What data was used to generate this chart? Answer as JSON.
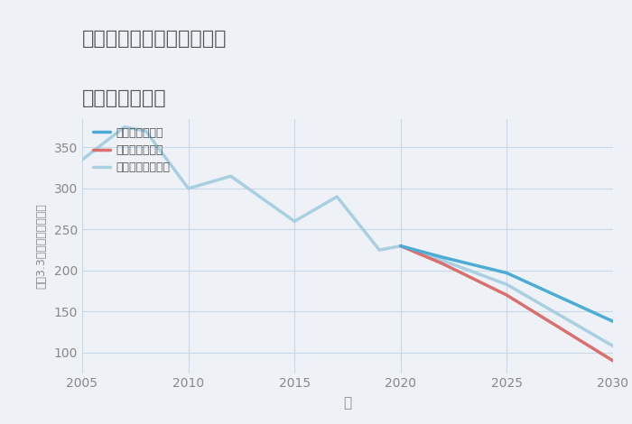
{
  "title_line1": "東京都東村山市多摩湖町の",
  "title_line2": "土地の価格推移",
  "xlabel": "年",
  "ylabel": "坪（3.3㎡）単価（万円）",
  "background_color": "#eef2f7",
  "plot_background_color": "#eef2f7",
  "xlim": [
    2005,
    2030
  ],
  "ylim": [
    75,
    385
  ],
  "yticks": [
    100,
    150,
    200,
    250,
    300,
    350
  ],
  "xticks": [
    2005,
    2010,
    2015,
    2020,
    2025,
    2030
  ],
  "historical_years": [
    2005,
    2007,
    2008,
    2010,
    2012,
    2015,
    2017,
    2019,
    2020
  ],
  "historical_values": [
    335,
    375,
    370,
    300,
    315,
    260,
    290,
    225,
    230
  ],
  "good_scenario": {
    "years": [
      2020,
      2022,
      2025,
      2030
    ],
    "values": [
      230,
      216,
      197,
      138
    ],
    "color": "#4dacd6",
    "label": "グッドシナリオ",
    "linewidth": 2.5
  },
  "bad_scenario": {
    "years": [
      2020,
      2022,
      2025,
      2030
    ],
    "values": [
      230,
      208,
      170,
      90
    ],
    "color": "#d9706e",
    "label": "バッドシナリオ",
    "linewidth": 2.5
  },
  "normal_scenario": {
    "years": [
      2020,
      2022,
      2025,
      2030
    ],
    "values": [
      230,
      212,
      183,
      108
    ],
    "color": "#a8d0e0",
    "label": "ノーマルシナリオ",
    "linewidth": 2.5
  },
  "historical_color": "#a8d0e0",
  "historical_linewidth": 2.5,
  "grid_color": "#c8d8e8",
  "title_color": "#555555",
  "label_color": "#888888",
  "tick_color": "#888888",
  "legend_label_color": "#555555"
}
